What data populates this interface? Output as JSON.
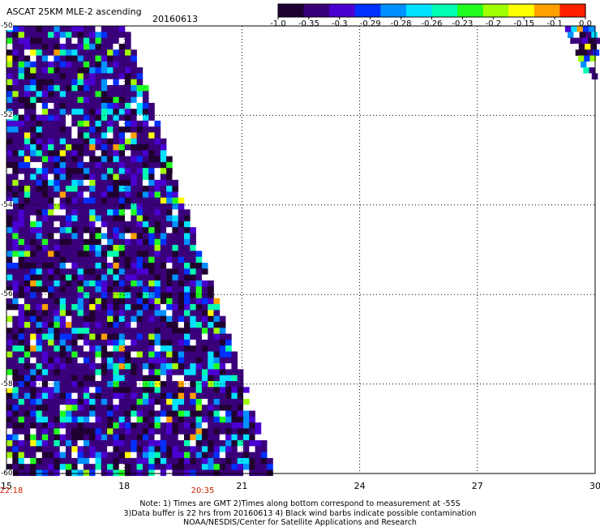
{
  "header": {
    "title": "ASCAT 25KM MLE-2 ascending",
    "date": "20160613"
  },
  "colorbar": {
    "labels": [
      "-1.0",
      "-0.35",
      "-0.3",
      "-0.29",
      "-0.28",
      "-0.26",
      "-0.23",
      "-0.2",
      "-0.15",
      "-0.1",
      "0.0"
    ],
    "colors": [
      "#200030",
      "#3a007a",
      "#4a00d0",
      "#0030ff",
      "#0090ff",
      "#00e0ff",
      "#00ffb0",
      "#20ff20",
      "#a0ff00",
      "#ffff00",
      "#ffa000",
      "#ff2000"
    ]
  },
  "chart_data": {
    "type": "heatmap",
    "title": "ASCAT 25KM MLE-2 ascending",
    "subtitle": "20160613",
    "xlabel": "",
    "ylabel": "",
    "xlim": [
      15,
      30
    ],
    "ylim": [
      -60,
      -50
    ],
    "x_ticks": [
      "15",
      "18",
      "21",
      "24",
      "27",
      "30"
    ],
    "y_ticks": [
      "-50",
      "-52",
      "-54",
      "-56",
      "-58",
      "-60"
    ],
    "grid": true,
    "pass_times": [
      {
        "lon": 15,
        "label": "22:18"
      },
      {
        "lon": 20,
        "label": "20:35"
      }
    ],
    "swaths": [
      {
        "name": "",
        "lon_min": 15,
        "lat_top": -50,
        "lat_bottom": -60,
        "lon_east_at_top": 18,
        "lon_east_at_bottom": 21.8
      },
      {
        "name": "",
        "lon_east": 30,
        "lat_top": -50,
        "lat_bottom": -51.2,
        "lon_west_at_top": 29.2,
        "lon_west_at_bottom": 29.8
      }
    ]
  },
  "notes": [
    "Note: 1) Times are GMT 2)Times along bottom correspond to measurement at -55S",
    "3)Data buffer is 22 hrs from 20160613 4) Black wind barbs indicate possible contamination",
    "NOAA/NESDIS/Center for Satellite Applications and Research"
  ]
}
